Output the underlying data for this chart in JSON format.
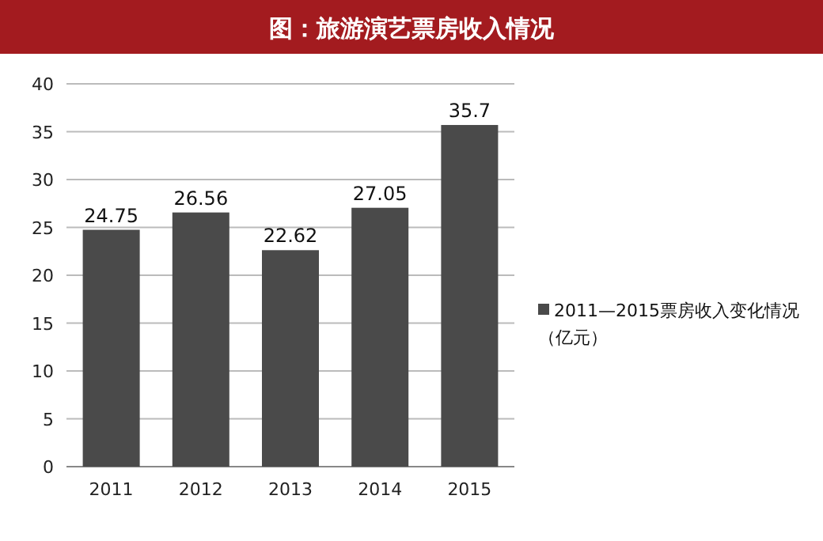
{
  "chart_data": {
    "type": "bar",
    "title": "图：旅游演艺票房收入情况",
    "categories": [
      "2011",
      "2012",
      "2013",
      "2014",
      "2015"
    ],
    "series": [
      {
        "name": "2011—2015票房收入变化情况（亿元）",
        "color": "#4a4a4a",
        "values": [
          24.75,
          26.56,
          22.62,
          27.05,
          35.7
        ]
      }
    ],
    "ylim": [
      0,
      40
    ],
    "yticks": [
      0,
      5,
      10,
      15,
      20,
      25,
      30,
      35,
      40
    ],
    "grid": "y",
    "legend": "right",
    "data_labels": true
  }
}
